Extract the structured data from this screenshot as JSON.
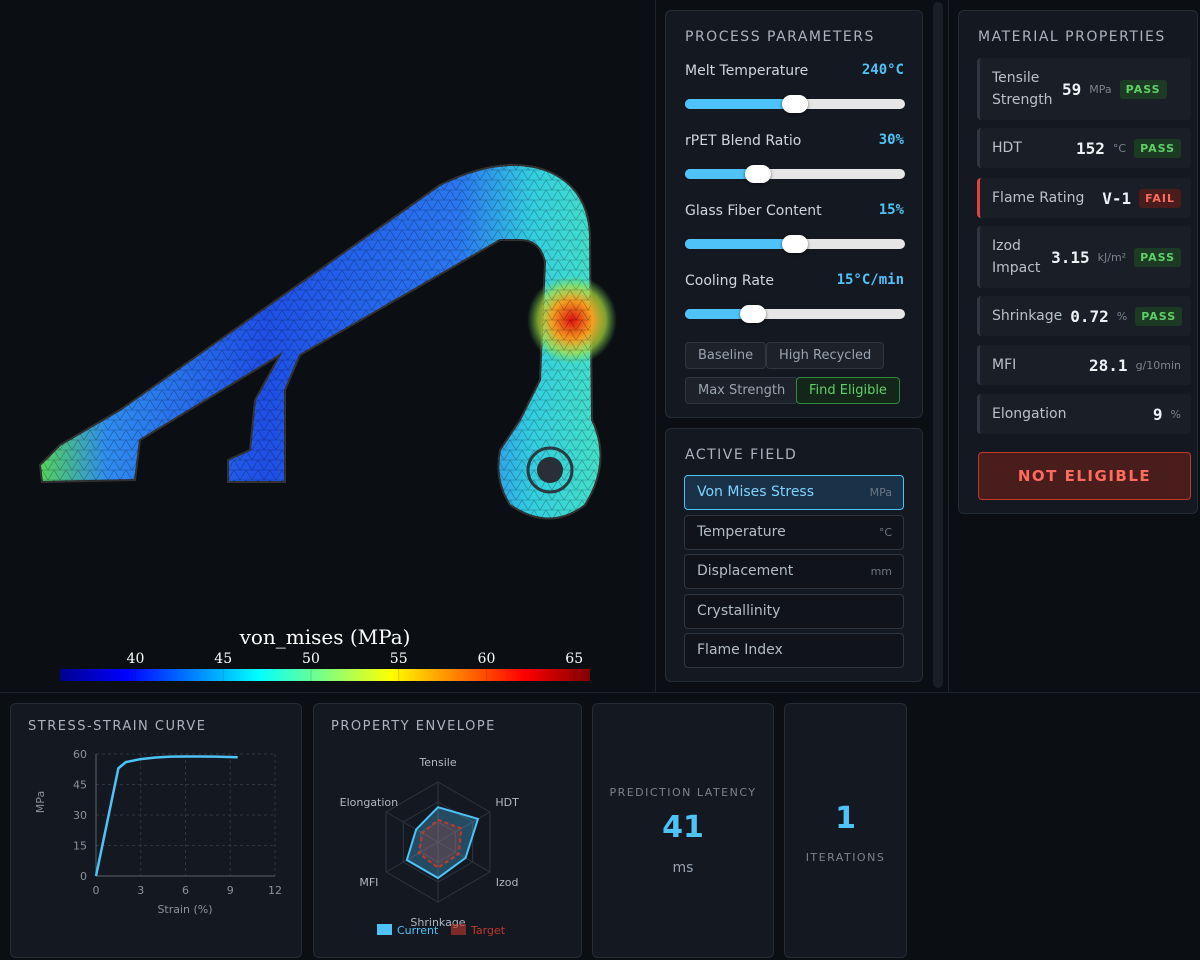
{
  "viewer": {
    "colorbar": {
      "title": "von_mises (MPa)",
      "lim": [
        35.7,
        65.9
      ],
      "ticks": [
        40,
        45,
        50,
        55,
        60,
        65
      ]
    }
  },
  "process_parameters": {
    "title": "PROCESS PARAMETERS",
    "params": [
      {
        "label": "Melt Temperature",
        "value": "240°C"
      },
      {
        "label": "rPET Blend Ratio",
        "value": "30%"
      },
      {
        "label": "Glass Fiber Content",
        "value": "15%"
      },
      {
        "label": "Cooling Rate",
        "value": "15°C/min"
      }
    ],
    "presets": [
      "Baseline",
      "High Recycled",
      "Max Strength",
      "Find Eligible"
    ]
  },
  "active_field": {
    "title": "ACTIVE FIELD",
    "fields": [
      {
        "name": "Von Mises Stress",
        "unit": "MPa"
      },
      {
        "name": "Temperature",
        "unit": "°C"
      },
      {
        "name": "Displacement",
        "unit": "mm"
      },
      {
        "name": "Crystallinity"
      },
      {
        "name": "Flame Index"
      }
    ]
  },
  "material_properties": {
    "title": "MATERIAL PROPERTIES",
    "rows": [
      {
        "label": "Tensile Strength",
        "value": 59,
        "unit": "MPa",
        "status": "PASS"
      },
      {
        "label": "HDT",
        "value": 152,
        "unit": "°C",
        "status": "PASS"
      },
      {
        "label": "Flame Rating",
        "value": "V-1",
        "status": "FAIL"
      },
      {
        "label": "Izod Impact",
        "value": 3.15,
        "unit": "kJ/m²",
        "status": "PASS"
      },
      {
        "label": "Shrinkage",
        "value": 0.72,
        "unit": "%",
        "status": "PASS"
      },
      {
        "label": "MFI",
        "value": 28.1,
        "unit": "g/10min"
      },
      {
        "label": "Elongation",
        "value": 9,
        "unit": "%"
      }
    ],
    "verdict": "NOT ELIGIBLE"
  },
  "chart_data": [
    {
      "type": "line",
      "title": "STRESS-STRAIN CURVE",
      "x_label": "Strain (%)",
      "y_label": "MPa",
      "x": [
        0,
        1.5,
        2,
        3,
        4,
        5,
        6,
        7,
        8,
        9.5
      ],
      "series": [
        {
          "color": "#4fc3f7",
          "values": [
            0,
            53,
            56,
            57.5,
            58.3,
            58.7,
            58.8,
            58.8,
            58.7,
            58.4
          ]
        }
      ],
      "xlim": [
        0,
        12
      ],
      "xticks": [
        0,
        3,
        6,
        9,
        12
      ],
      "ylim": [
        0,
        60
      ],
      "yticks": [
        0,
        15,
        30,
        45,
        60
      ],
      "grid": true
    },
    {
      "type": "radar",
      "title": "PROPERTY ENVELOPE",
      "categories": [
        "Tensile",
        "HDT",
        "Izod",
        "Shrinkage",
        "MFI",
        "Elongation"
      ],
      "rlim": [
        0,
        1
      ],
      "series": [
        {
          "name": "Current",
          "color": "#4fc3f7",
          "values": [
            0.58,
            0.77,
            0.53,
            0.6,
            0.6,
            0.42
          ]
        },
        {
          "name": "Target",
          "color": "#c0392b",
          "values": [
            0.37,
            0.45,
            0.4,
            0.43,
            0.37,
            0.3
          ]
        }
      ]
    }
  ],
  "latency": {
    "label": "PREDICTION LATENCY",
    "value": 41,
    "unit": "ms"
  },
  "iterations": {
    "value": 1,
    "label": "ITERATIONS"
  }
}
